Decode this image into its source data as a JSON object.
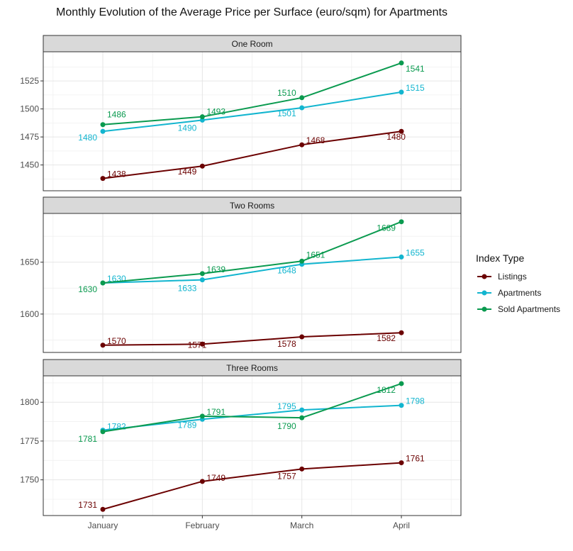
{
  "chart_data": {
    "type": "line",
    "title": "Monthly Evolution of the Average Price per Surface (euro/sqm) for Apartments",
    "categories": [
      "January",
      "February",
      "March",
      "April"
    ],
    "legend": {
      "title": "Index Type",
      "placement": "right",
      "entries": [
        {
          "name": "Listings",
          "color": "#6b0000"
        },
        {
          "name": "Apartments",
          "color": "#12b5cf"
        },
        {
          "name": "Sold Apartments",
          "color": "#0a9a4f"
        }
      ]
    },
    "grid": true,
    "panels": [
      {
        "title": "One Room",
        "ylim": [
          1427,
          1551
        ],
        "yticks": [
          1450,
          1475,
          1500,
          1525
        ],
        "series": [
          {
            "name": "Listings",
            "values": [
              1438,
              1449,
              1468,
              1480
            ]
          },
          {
            "name": "Apartments",
            "values": [
              1480,
              1490,
              1501,
              1515
            ]
          },
          {
            "name": "Sold Apartments",
            "values": [
              1486,
              1493,
              1510,
              1541
            ]
          }
        ]
      },
      {
        "title": "Two Rooms",
        "ylim": [
          1563,
          1697
        ],
        "yticks": [
          1600,
          1650
        ],
        "series": [
          {
            "name": "Listings",
            "values": [
              1570,
              1571,
              1578,
              1582
            ]
          },
          {
            "name": "Apartments",
            "values": [
              1630,
              1633,
              1648,
              1655
            ]
          },
          {
            "name": "Sold Apartments",
            "values": [
              1630,
              1639,
              1651,
              1689
            ]
          }
        ]
      },
      {
        "title": "Three Rooms",
        "ylim": [
          1727,
          1817
        ],
        "yticks": [
          1750,
          1775,
          1800
        ],
        "series": [
          {
            "name": "Listings",
            "values": [
              1731,
              1749,
              1757,
              1761
            ]
          },
          {
            "name": "Apartments",
            "values": [
              1782,
              1789,
              1795,
              1798
            ]
          },
          {
            "name": "Sold Apartments",
            "values": [
              1781,
              1791,
              1790,
              1812
            ]
          }
        ]
      }
    ]
  }
}
